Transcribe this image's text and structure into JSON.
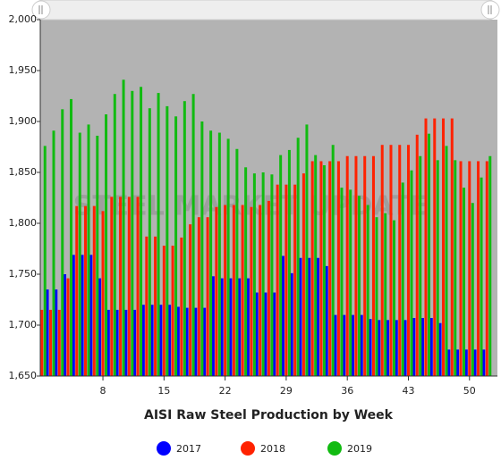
{
  "chart_data": {
    "type": "bar",
    "title": "AISI Raw Steel Production by Week",
    "watermark": "STEEL MARKET UPDATE",
    "x": [
      1,
      2,
      3,
      4,
      5,
      6,
      7,
      8,
      9,
      10,
      11,
      12,
      13,
      14,
      15,
      16,
      17,
      18,
      19,
      20,
      21,
      22,
      23,
      24,
      25,
      26,
      27,
      28,
      29,
      30,
      31,
      32,
      33,
      34,
      35,
      36,
      37,
      38,
      39,
      40,
      41,
      42,
      43,
      44,
      45,
      46,
      47,
      48,
      49,
      50,
      51,
      52
    ],
    "xlim": [
      0.82,
      53.2
    ],
    "xticks": [
      8,
      15,
      22,
      29,
      36,
      43,
      50
    ],
    "ylim": [
      1650,
      2000
    ],
    "yticks": [
      {
        "value": 1650,
        "label": "1,650"
      },
      {
        "value": 1700,
        "label": "1,700"
      },
      {
        "value": 1750,
        "label": "1,750"
      },
      {
        "value": 1800,
        "label": "1,800"
      },
      {
        "value": 1850,
        "label": "1,850"
      },
      {
        "value": 1900,
        "label": "1,900"
      },
      {
        "value": 1950,
        "label": "1,950"
      },
      {
        "value": 2000,
        "label": "2,000"
      }
    ],
    "series": [
      {
        "name": "2017",
        "color": "#0000ff",
        "values": [
          1735,
          1735,
          1735,
          1750,
          1769,
          1769,
          1769,
          1746,
          1715,
          1715,
          1715,
          1715,
          1720,
          1720,
          1720,
          1720,
          1718,
          1717,
          1717,
          1717,
          1748,
          1746,
          1746,
          1746,
          1746,
          1732,
          1732,
          1732,
          1768,
          1751,
          1766,
          1766,
          1766,
          1758,
          1710,
          1710,
          1710,
          1710,
          1706,
          1705,
          1705,
          1705,
          1705,
          1707,
          1707,
          1707,
          1702,
          1676,
          1676,
          1676,
          1676,
          1676
        ]
      },
      {
        "name": "2018",
        "color": "#ff2200",
        "values": [
          1715,
          1715,
          1715,
          1746,
          1817,
          1817,
          1817,
          1812,
          1826,
          1826,
          1826,
          1826,
          1787,
          1787,
          1778,
          1778,
          1786,
          1799,
          1806,
          1806,
          1816,
          1818,
          1818,
          1818,
          1816,
          1818,
          1822,
          1838,
          1838,
          1838,
          1849,
          1861,
          1861,
          1861,
          1861,
          1866,
          1866,
          1866,
          1866,
          1877,
          1877,
          1877,
          1877,
          1887,
          1903,
          1903,
          1903,
          1903,
          1861,
          1861,
          1861,
          1861
        ]
      },
      {
        "name": "2019",
        "color": "#11bb11",
        "values": [
          1876,
          1891,
          1912,
          1922,
          1889,
          1897,
          1886,
          1907,
          1927,
          1941,
          1930,
          1934,
          1913,
          1928,
          1915,
          1905,
          1920,
          1927,
          1900,
          1891,
          1889,
          1883,
          1873,
          1855,
          1849,
          1850,
          1848,
          1867,
          1872,
          1884,
          1897,
          1867,
          1857,
          1877,
          1835,
          1833,
          1827,
          1818,
          1806,
          1810,
          1803,
          1840,
          1852,
          1866,
          1888,
          1862,
          1876,
          1862,
          1835,
          1820,
          1845,
          1866
        ]
      }
    ]
  }
}
